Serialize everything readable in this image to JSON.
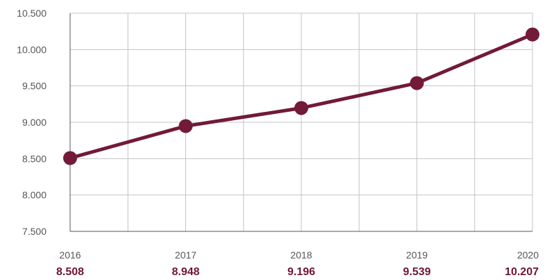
{
  "chart_data": {
    "type": "line",
    "title": "",
    "xlabel": "",
    "ylabel": "",
    "categories": [
      "2016",
      "2017",
      "2018",
      "2019",
      "2020"
    ],
    "series": [
      {
        "values": [
          8508,
          8948,
          9196,
          9539,
          10207
        ]
      }
    ],
    "data_labels": [
      "8.508",
      "8.948",
      "9.196",
      "9.539",
      "10.207"
    ],
    "ylim": [
      7500,
      10500
    ],
    "yticks": [
      7500,
      8000,
      8500,
      9000,
      9500,
      10000,
      10500
    ],
    "ytick_labels": [
      "7.500",
      "8.000",
      "8.500",
      "9.000",
      "9.500",
      "10.000",
      "10.500"
    ],
    "grid": true,
    "legend": "none",
    "colors": {
      "line": "#721a36",
      "marker": "#721a36",
      "data_label": "#6f1530",
      "grid": "#c4c4c4"
    }
  }
}
